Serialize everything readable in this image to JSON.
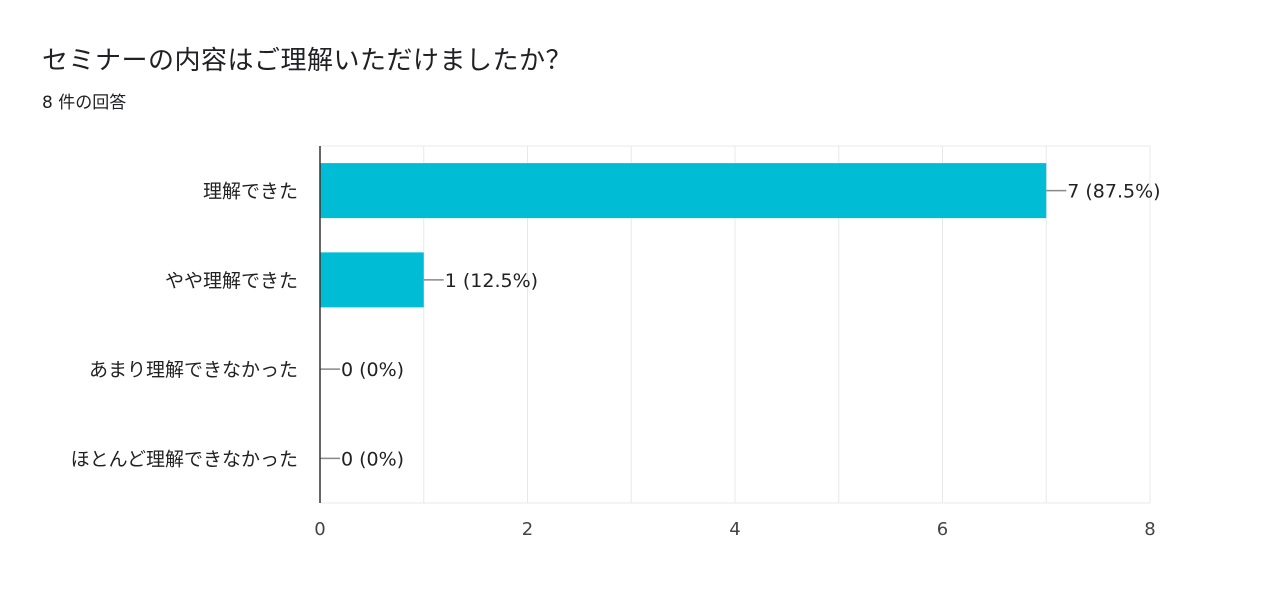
{
  "question": {
    "title": "セミナーの内容はご理解いただけましたか？",
    "response_count": "8 件の回答"
  },
  "chart_data": {
    "type": "bar",
    "orientation": "horizontal",
    "title": "セミナーの内容はご理解いただけましたか？",
    "subtitle": "8 件の回答",
    "categories": [
      "理解できた",
      "やや理解できた",
      "あまり理解できなかった",
      "ほとんど理解できなかった"
    ],
    "values": [
      7,
      1,
      0,
      0
    ],
    "data_labels": [
      "7 (87.5%)",
      "1 (12.5%)",
      "0 (0%)",
      "0 (0%)"
    ],
    "xlim": [
      0,
      8
    ],
    "x_ticks": [
      0,
      2,
      4,
      6,
      8
    ],
    "grid": true,
    "bar_color": "#00bcd5",
    "grid_color": "#e8e8e8",
    "axis_color": "#333333"
  }
}
